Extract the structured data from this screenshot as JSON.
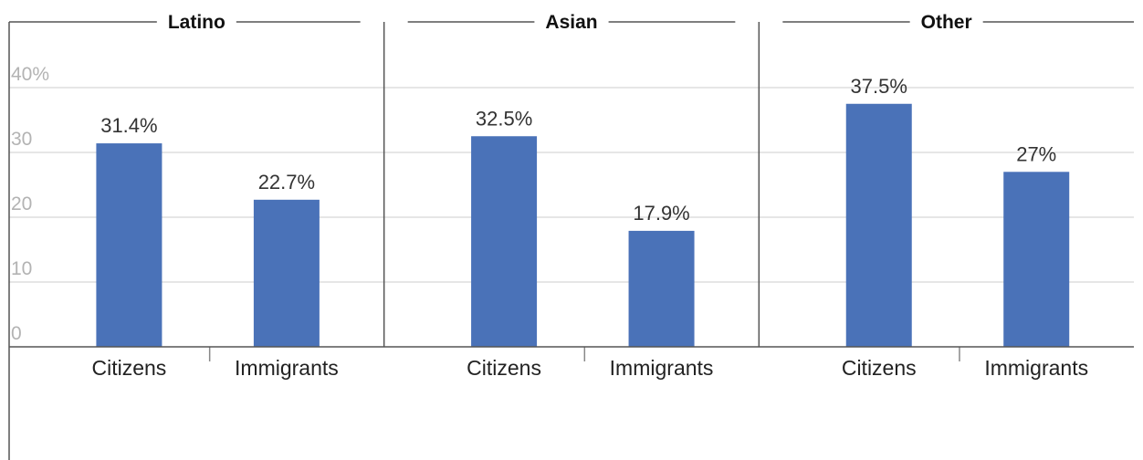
{
  "chart_data": {
    "type": "bar",
    "y_ticks": [
      {
        "value": 0,
        "label": "0"
      },
      {
        "value": 10,
        "label": "10"
      },
      {
        "value": 20,
        "label": "20"
      },
      {
        "value": 30,
        "label": "30"
      },
      {
        "value": 40,
        "label": "40%"
      }
    ],
    "ylim": [
      0,
      40
    ],
    "grid": true,
    "colors": {
      "bar": "#4a72b8",
      "grid": "#dddddd",
      "axis": "#555555"
    },
    "categories": [
      "Citizens",
      "Immigrants"
    ],
    "panels": [
      {
        "title": "Latino",
        "values": [
          31.4,
          22.7
        ],
        "data_labels": [
          "31.4%",
          "22.7%"
        ]
      },
      {
        "title": "Asian",
        "values": [
          32.5,
          17.9
        ],
        "data_labels": [
          "32.5%",
          "17.9%"
        ]
      },
      {
        "title": "Other",
        "values": [
          37.5,
          27
        ],
        "data_labels": [
          "37.5%",
          "27%"
        ]
      }
    ]
  }
}
